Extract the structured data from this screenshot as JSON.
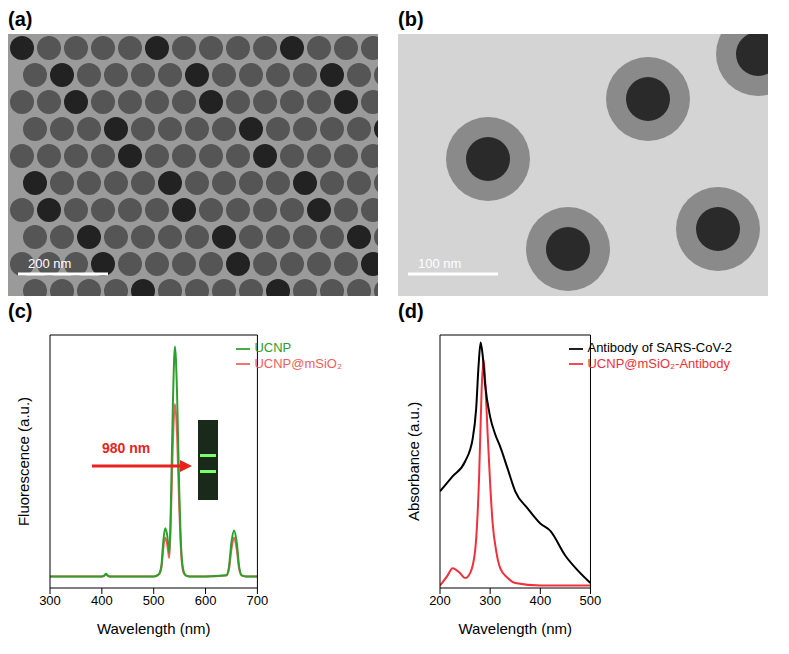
{
  "images": [
    {
      "label": "(a)",
      "scale_bar": "200 nm"
    },
    {
      "label": "(b)",
      "scale_bar": "100 nm"
    }
  ],
  "chart_data": [
    {
      "type": "line",
      "title": "(c)",
      "x_label": "Wavelength (nm)",
      "y_label": "Fluorescence (a.u.)",
      "annotations": [
        "980 nm"
      ],
      "xlim": [
        300,
        700
      ],
      "xticks": [
        300,
        400,
        500,
        600,
        700
      ],
      "ylim": [
        -5,
        105
      ],
      "tick_labels": "x",
      "legend": "upper right",
      "series": [
        {
          "name": "UCNP@mSiO₂",
          "color": "#f0605a",
          "x": [
            300,
            400,
            405,
            408,
            411,
            415,
            500,
            510,
            515,
            518,
            522,
            526,
            530,
            533,
            537,
            541,
            545,
            549,
            553,
            557,
            562,
            570,
            600,
            640,
            645,
            650,
            655,
            660,
            665,
            670,
            680,
            700
          ],
          "values": [
            0,
            0,
            0.4,
            1,
            0.4,
            0,
            0,
            1,
            4,
            11,
            17,
            14,
            8,
            24,
            58,
            75,
            62,
            32,
            10,
            2,
            0.4,
            0,
            0,
            0.4,
            3,
            12,
            17,
            12,
            3,
            0.4,
            0,
            0
          ]
        },
        {
          "name": "UCNP",
          "color": "#2ca02c",
          "x": [
            300,
            400,
            405,
            408,
            411,
            415,
            500,
            510,
            515,
            518,
            522,
            526,
            530,
            533,
            537,
            541,
            545,
            549,
            553,
            557,
            562,
            570,
            600,
            640,
            645,
            650,
            655,
            660,
            665,
            670,
            680,
            700
          ],
          "values": [
            0,
            0,
            0.5,
            1.2,
            0.5,
            0,
            0,
            1,
            5,
            14,
            21,
            18,
            10,
            30,
            75,
            100,
            80,
            40,
            12,
            3,
            0.5,
            0,
            0,
            0.5,
            4,
            15,
            20,
            15,
            4,
            0.5,
            0,
            0
          ]
        }
      ]
    },
    {
      "type": "line",
      "title": "(d)",
      "x_label": "Wavelength (nm)",
      "y_label": "Absorbance (a.u.)",
      "xlim": [
        200,
        500
      ],
      "xticks": [
        200,
        300,
        400,
        500
      ],
      "ylim": [
        0,
        102
      ],
      "tick_labels": "x",
      "legend": "upper right",
      "series": [
        {
          "name": "UCNP@mSiO₂-Antibody",
          "color": "#f0303a",
          "x": [
            200,
            215,
            225,
            240,
            250,
            260,
            270,
            278,
            283,
            287,
            291,
            295,
            300,
            305,
            312,
            320,
            335,
            350,
            400,
            500
          ],
          "values": [
            1,
            5,
            8,
            6,
            4,
            6,
            15,
            45,
            80,
            92,
            80,
            62,
            42,
            26,
            15,
            8,
            4,
            2,
            1,
            1
          ]
        },
        {
          "name": "Antibody of SARS-CoV-2",
          "color": "#000000",
          "x": [
            200,
            225,
            250,
            265,
            272,
            277,
            281,
            285,
            290,
            300,
            310,
            320,
            335,
            350,
            375,
            400,
            420,
            450,
            475,
            500
          ],
          "values": [
            39,
            45,
            51,
            60,
            72,
            90,
            99,
            94,
            82,
            69,
            62,
            57,
            48,
            39,
            32,
            26,
            23,
            13,
            7,
            2
          ]
        }
      ]
    }
  ]
}
